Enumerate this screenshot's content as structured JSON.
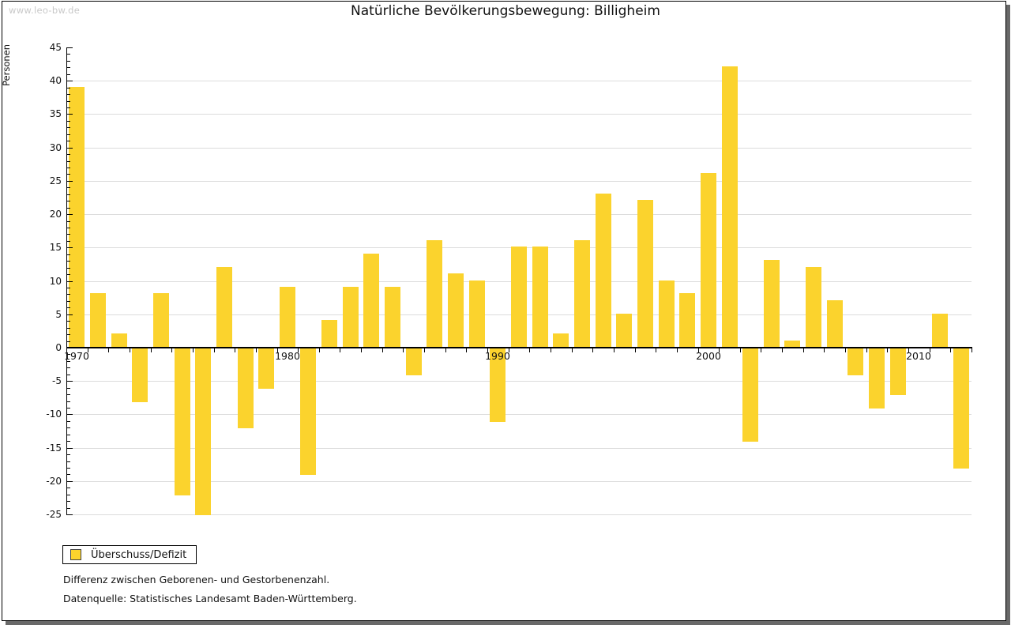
{
  "watermark": "www.leo-bw.de",
  "title": "Natürliche Bevölkerungsbewegung: Billigheim",
  "legend": {
    "label": "Überschuss/Defizit"
  },
  "footnotes": [
    "Differenz zwischen Geborenen- und Gestorbenenzahl.",
    "Datenquelle: Statistisches Landesamt Baden-Württemberg."
  ],
  "axes": {
    "y_label": "Personen",
    "y_tick_labels": [
      45,
      40,
      35,
      30,
      25,
      20,
      15,
      10,
      5,
      0,
      -5,
      -10,
      -15,
      -20,
      -25
    ],
    "x_decade_labels": [
      "1970",
      "1980",
      "1990",
      "2000",
      "2010"
    ]
  },
  "colors": {
    "bar": "#fbd32d",
    "grid": "#dcdcdc",
    "axis": "#000000",
    "text": "#111111",
    "watermark": "#c9c9c9",
    "frame_shadow": "#696969",
    "legend_swatch_border": "#444444"
  },
  "chart_data": {
    "type": "bar",
    "title": "Natürliche Bevölkerungsbewegung: Billigheim",
    "xlabel": "",
    "ylabel": "Personen",
    "x": [
      1970,
      1971,
      1972,
      1973,
      1974,
      1975,
      1976,
      1977,
      1978,
      1979,
      1980,
      1981,
      1982,
      1983,
      1984,
      1985,
      1986,
      1987,
      1988,
      1989,
      1990,
      1991,
      1992,
      1993,
      1994,
      1995,
      1996,
      1997,
      1998,
      1999,
      2000,
      2001,
      2002,
      2003,
      2004,
      2005,
      2006,
      2007,
      2008,
      2009,
      2010,
      2011,
      2012
    ],
    "series": [
      {
        "name": "Überschuss/Defizit",
        "values": [
          39,
          8,
          2,
          -8,
          8,
          -22,
          -25,
          12,
          -12,
          -6,
          9,
          -19,
          4,
          9,
          14,
          9,
          -4,
          16,
          11,
          10,
          -11,
          15,
          15,
          2,
          16,
          23,
          5,
          22,
          10,
          8,
          26,
          42,
          -14,
          13,
          1,
          12,
          7,
          -4,
          -9,
          -7,
          0,
          5,
          -18
        ]
      }
    ],
    "ylim": [
      -25,
      45
    ],
    "ytick_step": 5,
    "ytick_minor_step": 1,
    "grid": true,
    "legend_position": "bottom-left"
  }
}
